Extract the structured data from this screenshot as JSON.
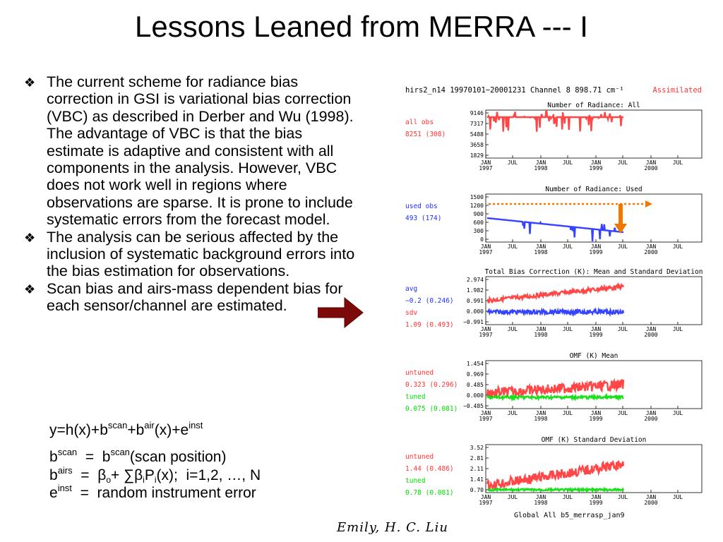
{
  "slide": {
    "title": "Lessons Leaned from MERRA --- I",
    "bullets": [
      "The current scheme for radiance bias correction in GSI is variational bias correction (VBC) as described in Derber and Wu (1998).  The advantage of VBC is that the bias estimate is adaptive and consistent with all components in the analysis. However, VBC does not work well in regions where observations are sparse.  It is prone to include systematic errors from the forecast model.",
      "The analysis can be serious affected by the inclusion of systematic background errors into the bias estimation for observations.",
      "Scan bias and airs-mass dependent bias for each sensor/channel are estimated."
    ],
    "bullet_symbol": "❖",
    "equations": {
      "main": {
        "y": "y=h(x)+b",
        "scan": "scan",
        "plus1": "+b",
        "air": "air",
        "x": "(x)+e",
        "inst": "inst"
      },
      "scan_def": {
        "b": "b",
        "sup1": "scan",
        "eq": "  =  b",
        "sup2": "scan",
        "rest": "(scan position)"
      },
      "airs_def": {
        "b": "b",
        "sup1": "airs",
        "eq": "  =  β",
        "sub_o": "o",
        "plus": "+ ∑β",
        "sub_i1": "i",
        "P": "P",
        "sub_i2": "i",
        "rest": "(x);  i=1,2, …, N"
      },
      "inst_def": {
        "e": "e",
        "sup1": "inst",
        "rest": "  =  random instrument error"
      }
    },
    "author": "Emily, H. C. Liu",
    "colors": {
      "arrow": "#7d0a0a",
      "red_series": "#ff3333",
      "blue_series": "#2030ff",
      "green_series": "#00dd00",
      "orange_annotation": "#f07800"
    }
  },
  "figure": {
    "header_left": "hirs2_n14  19970101−20001231   Channel  8   898.71  cm⁻¹",
    "header_right": "Assimilated",
    "x_ticks": [
      "JAN\n1997",
      "JUL",
      "JAN\n1998",
      "JUL",
      "JAN\n1999",
      "JUL",
      "JAN\n2000",
      "JUL"
    ],
    "footer": "Global   All       b5_merrasp_jan9",
    "panels": [
      {
        "title": "Number of Radiance: All",
        "yticks": [
          "9146",
          "7317",
          "5488",
          "3658",
          "1829"
        ],
        "labels": [
          {
            "text": "all obs",
            "color": "#ff3333"
          },
          {
            "text": "8251 (308)",
            "color": "#ff3333"
          }
        ]
      },
      {
        "title": "Number of Radiance: Used",
        "yticks": [
          "1500",
          "1200",
          "900",
          "600",
          "300",
          "0"
        ],
        "labels": [
          {
            "text": "used obs",
            "color": "#2030ff"
          },
          {
            "text": "493 (174)",
            "color": "#2030ff"
          }
        ]
      },
      {
        "title": "Total Bias Correction (K): Mean and Standard Deviation",
        "yticks": [
          "2.974",
          "1.982",
          "0.991",
          "0.000",
          "−0.991"
        ],
        "labels": [
          {
            "text": "avg",
            "color": "#2030ff"
          },
          {
            "text": "−0.2 (0.246)",
            "color": "#2030ff"
          },
          {
            "text": "sdv",
            "color": "#ff3333"
          },
          {
            "text": "1.09 (0.493)",
            "color": "#ff3333"
          }
        ]
      },
      {
        "title": "OMF (K) Mean",
        "yticks": [
          "1.454",
          "0.969",
          "0.485",
          "0.000",
          "−0.485"
        ],
        "labels": [
          {
            "text": "untuned",
            "color": "#ff3333"
          },
          {
            "text": "0.323 (0.296)",
            "color": "#ff3333"
          },
          {
            "text": "tuned",
            "color": "#00dd00"
          },
          {
            "text": "0.075 (0.081)",
            "color": "#00dd00"
          }
        ]
      },
      {
        "title": "OMF (K) Standard Deviation",
        "yticks": [
          "3.52",
          "2.81",
          "2.11",
          "1.41",
          "0.70"
        ],
        "labels": [
          {
            "text": "untuned",
            "color": "#ff3333"
          },
          {
            "text": "1.44 (0.486)",
            "color": "#ff3333"
          },
          {
            "text": "tuned",
            "color": "#00dd00"
          },
          {
            "text": "0.78 (0.081)",
            "color": "#00dd00"
          }
        ]
      }
    ]
  }
}
